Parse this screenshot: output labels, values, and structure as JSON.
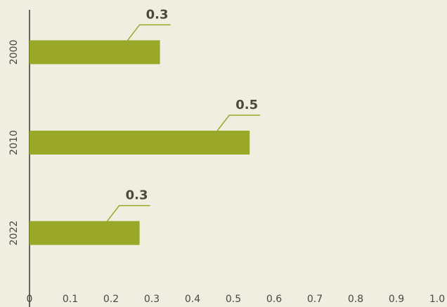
{
  "chart_data": {
    "type": "bar",
    "orientation": "horizontal",
    "categories": [
      "2000",
      "2010",
      "2022"
    ],
    "values": [
      0.32,
      0.54,
      0.27
    ],
    "value_labels": [
      "0.3",
      "0.5",
      "0.3"
    ],
    "color": "#9aa82a",
    "xlim": [
      0,
      1
    ],
    "xticks": [
      0,
      0.1,
      0.2,
      0.3,
      0.4,
      0.5,
      0.6,
      0.7,
      0.8,
      0.9,
      {
        "value": 1,
        "label": "1.0"
      }
    ],
    "grid": false
  }
}
